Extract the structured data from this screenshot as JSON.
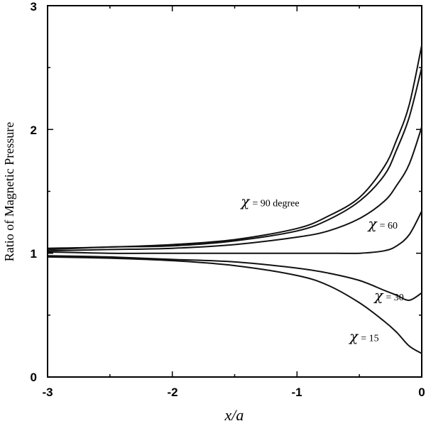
{
  "chart_data": {
    "type": "line",
    "title": "",
    "xlabel": "x/a",
    "ylabel": "Ratio of Magnetic Pressure",
    "xlim": [
      -3,
      0
    ],
    "ylim": [
      0,
      3
    ],
    "xticks": [
      "-3",
      "-2",
      "-1",
      "0"
    ],
    "yticks": [
      "0",
      "1",
      "2",
      "3"
    ],
    "grid": false,
    "legend": "none",
    "series": [
      {
        "x": [
          -3,
          -2.5,
          -2,
          -1.5,
          -1,
          -0.75,
          -0.5,
          -0.3,
          -0.2,
          -0.1,
          0
        ],
        "y": [
          1.04,
          1.05,
          1.07,
          1.11,
          1.2,
          1.3,
          1.45,
          1.7,
          1.92,
          2.2,
          2.68
        ]
      },
      {
        "x": [
          -3,
          -2.5,
          -2,
          -1.5,
          -1,
          -0.75,
          -0.5,
          -0.3,
          -0.2,
          -0.1,
          0
        ],
        "y": [
          1.03,
          1.05,
          1.06,
          1.1,
          1.18,
          1.27,
          1.42,
          1.63,
          1.84,
          2.1,
          2.5
        ]
      },
      {
        "x": [
          -3,
          -2.5,
          -2,
          -1.5,
          -1,
          -0.75,
          -0.5,
          -0.3,
          -0.2,
          -0.1,
          0
        ],
        "y": [
          1.02,
          1.03,
          1.04,
          1.07,
          1.13,
          1.18,
          1.28,
          1.42,
          1.55,
          1.72,
          2.02
        ]
      },
      {
        "x": [
          -3,
          -2.5,
          -2,
          -1.5,
          -1,
          -0.75,
          -0.5,
          -0.3,
          -0.2,
          -0.1,
          0
        ],
        "y": [
          1.01,
          1.0,
          1.0,
          1.0,
          1.0,
          1.0,
          1.0,
          1.02,
          1.06,
          1.15,
          1.34
        ]
      },
      {
        "x": [
          -3,
          -2.5,
          -2,
          -1.5,
          -1,
          -0.75,
          -0.5,
          -0.3,
          -0.2,
          -0.1,
          0
        ],
        "y": [
          0.98,
          0.97,
          0.95,
          0.93,
          0.88,
          0.84,
          0.78,
          0.7,
          0.66,
          0.62,
          0.68
        ]
      },
      {
        "x": [
          -3,
          -2.5,
          -2,
          -1.5,
          -1,
          -0.75,
          -0.5,
          -0.3,
          -0.2,
          -0.1,
          0
        ],
        "y": [
          0.97,
          0.96,
          0.94,
          0.9,
          0.82,
          0.74,
          0.6,
          0.45,
          0.36,
          0.25,
          0.19
        ]
      }
    ],
    "annotations": [
      {
        "symbol": "χ",
        "text": "= 90 degree",
        "x": -1.45,
        "y": 1.38
      },
      {
        "symbol": "χ",
        "text": "= 60",
        "x": -0.43,
        "y": 1.2
      },
      {
        "symbol": "χ",
        "text": "= 30",
        "x": -0.38,
        "y": 0.62
      },
      {
        "symbol": "χ",
        "text": "= 15",
        "x": -0.58,
        "y": 0.29
      }
    ]
  }
}
